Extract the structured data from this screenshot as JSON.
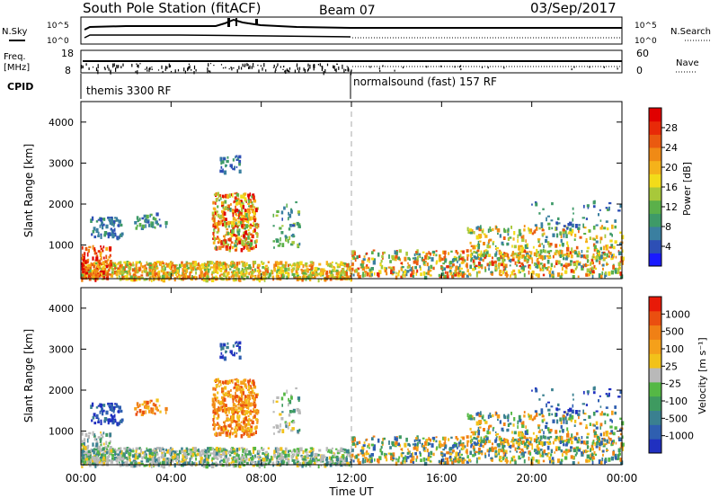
{
  "header": {
    "station": "South Pole Station (fitACF)",
    "beam": "Beam 07",
    "date": "03/Sep/2017"
  },
  "top_panel": {
    "nsky_label": "N.Sky",
    "nsearch_label": "N.Search",
    "left_ticks": [
      "10^5",
      "10^0"
    ],
    "right_ticks": [
      "10^5",
      "10^0"
    ]
  },
  "freq_panel": {
    "freq_label": "Freq.",
    "freq_unit": "[MHz]",
    "nave_label": "Nave",
    "left_ticks": [
      "18",
      "8"
    ],
    "right_ticks": [
      "60",
      "0"
    ]
  },
  "cpid": {
    "label": "CPID",
    "modes": [
      {
        "name": "themis 3300 RF",
        "start_h": 0
      },
      {
        "name": "normalsound (fast) 157 RF",
        "start_h": 12
      }
    ]
  },
  "chart_data": [
    {
      "type": "heatmap",
      "name": "power",
      "ylabel": "Slant Range [km]",
      "yticks": [
        1000,
        2000,
        3000,
        4000
      ],
      "ylim": [
        180,
        4500
      ],
      "xlim_hours": [
        0,
        24
      ],
      "colorbar": {
        "label": "Power [dB]",
        "ticks": [
          "28",
          "24",
          "20",
          "16",
          "12",
          "8",
          "4"
        ],
        "colors": [
          "#1a1aff",
          "#2d4fb5",
          "#3a7fa0",
          "#3e9a68",
          "#5bb04a",
          "#a8c83a",
          "#f2dc1a",
          "#f5b21a",
          "#f08a15",
          "#ea5a10",
          "#e82a08",
          "#e00000"
        ]
      }
    },
    {
      "type": "heatmap",
      "name": "velocity",
      "ylabel": "Slant Range [km]",
      "yticks": [
        1000,
        2000,
        3000,
        4000
      ],
      "ylim": [
        180,
        4500
      ],
      "xlim_hours": [
        0,
        24
      ],
      "xticks": [
        "00:00",
        "04:00",
        "08:00",
        "12:00",
        "16:00",
        "20:00",
        "00:00"
      ],
      "xlabel": "Time UT",
      "colorbar": {
        "label": "Velocity [m s⁻¹]",
        "ticks": [
          "1000",
          "500",
          "100",
          "25",
          "-25",
          "-100",
          "-500",
          "-1000"
        ],
        "colors": [
          "#2030c0",
          "#2f5fb0",
          "#3a8090",
          "#3e9a60",
          "#55b845",
          "#b9b9b9",
          "#f2c21a",
          "#f5a01a",
          "#f08015",
          "#ea4f10",
          "#e81a08"
        ]
      }
    }
  ],
  "colors": {
    "axis": "#000000",
    "divider": "#aaaaaa"
  }
}
